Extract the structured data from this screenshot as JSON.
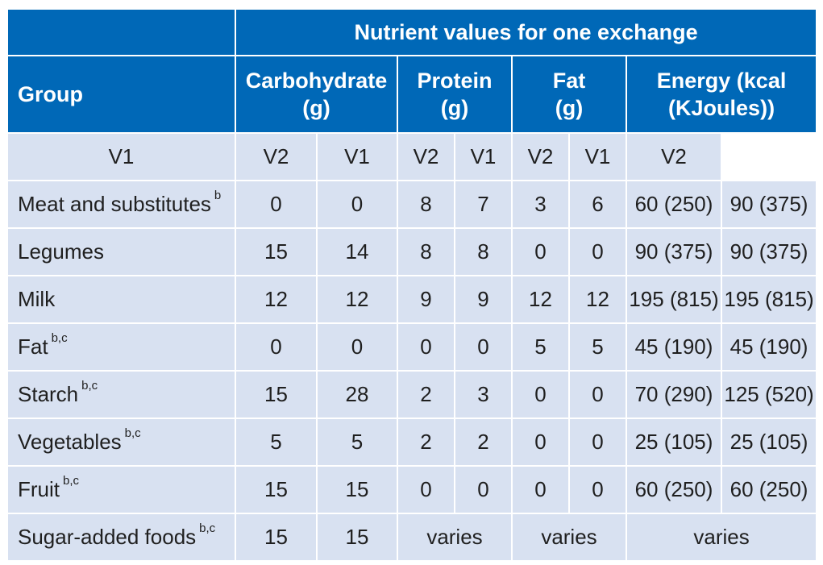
{
  "table": {
    "super_header": "Nutrient values for one exchange",
    "group_header": "Group",
    "nutrients": [
      {
        "line1": "Carbohydrate",
        "line2": "(g)"
      },
      {
        "line1": "Protein",
        "line2": "(g)"
      },
      {
        "line1": "Fat",
        "line2": "(g)"
      },
      {
        "line1": "Energy (kcal",
        "line2": "(KJoules))"
      }
    ],
    "versions": [
      "V1",
      "V2",
      "V1",
      "V2",
      "V1",
      "V2",
      "V1",
      "V2"
    ],
    "rows": [
      {
        "group": "Meat and substitutes",
        "note": "b",
        "carb_v1": "0",
        "carb_v2": "0",
        "protein_v1": "8",
        "protein_v2": "7",
        "fat_v1": "3",
        "fat_v2": "6",
        "energy_v1": "60 (250)",
        "energy_v2": "90 (375)"
      },
      {
        "group": "Legumes",
        "note": "",
        "carb_v1": "15",
        "carb_v2": "14",
        "protein_v1": "8",
        "protein_v2": "8",
        "fat_v1": "0",
        "fat_v2": "0",
        "energy_v1": "90 (375)",
        "energy_v2": "90 (375)"
      },
      {
        "group": "Milk",
        "note": "",
        "carb_v1": "12",
        "carb_v2": "12",
        "protein_v1": "9",
        "protein_v2": "9",
        "fat_v1": "12",
        "fat_v2": "12",
        "energy_v1": "195 (815)",
        "energy_v2": "195 (815)"
      },
      {
        "group": "Fat",
        "note": "b,c",
        "carb_v1": "0",
        "carb_v2": "0",
        "protein_v1": "0",
        "protein_v2": "0",
        "fat_v1": "5",
        "fat_v2": "5",
        "energy_v1": "45 (190)",
        "energy_v2": "45 (190)"
      },
      {
        "group": "Starch",
        "note": "b,c",
        "carb_v1": "15",
        "carb_v2": "28",
        "protein_v1": "2",
        "protein_v2": "3",
        "fat_v1": "0",
        "fat_v2": "0",
        "energy_v1": "70 (290)",
        "energy_v2": "125 (520)"
      },
      {
        "group": "Vegetables",
        "note": "b,c",
        "carb_v1": "5",
        "carb_v2": "5",
        "protein_v1": "2",
        "protein_v2": "2",
        "fat_v1": "0",
        "fat_v2": "0",
        "energy_v1": "25 (105)",
        "energy_v2": "25 (105)"
      },
      {
        "group": "Fruit",
        "note": "b,c",
        "carb_v1": "15",
        "carb_v2": "15",
        "protein_v1": "0",
        "protein_v2": "0",
        "fat_v1": "0",
        "fat_v2": "0",
        "energy_v1": "60 (250)",
        "energy_v2": "60 (250)"
      }
    ],
    "last_row": {
      "group": "Sugar-added foods",
      "note": "b,c",
      "carb_v1": "15",
      "carb_v2": "15",
      "protein": "varies",
      "fat": "varies",
      "energy": "varies"
    },
    "colors": {
      "header_bg": "#0068b7",
      "body_bg": "#d8e1f1",
      "header_text": "#ffffff",
      "body_text": "#1f1f1f"
    }
  }
}
